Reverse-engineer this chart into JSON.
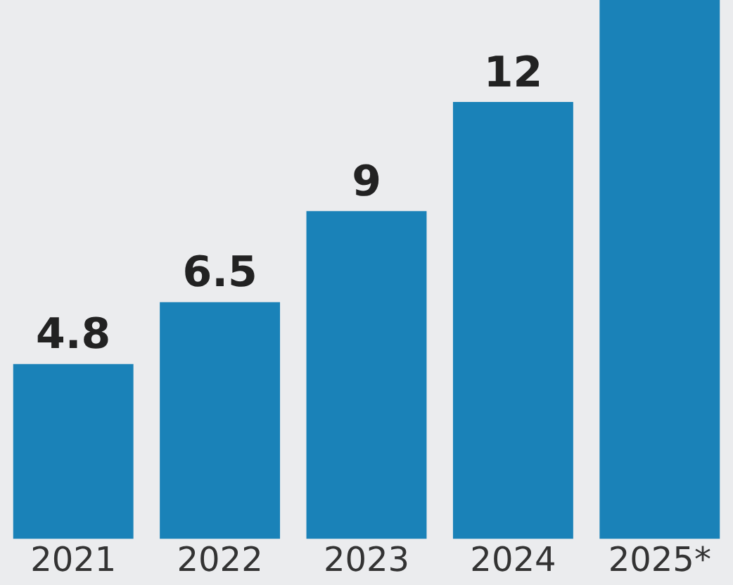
{
  "chart_data": {
    "type": "bar",
    "categories": [
      "2021",
      "2022",
      "2023",
      "2024",
      "2025*"
    ],
    "values": [
      4.8,
      6.5,
      9,
      12,
      14.8
    ],
    "value_labels": [
      "4.8",
      "6.5",
      "9",
      "12",
      null
    ],
    "color": "#1a82b8",
    "ylim": [
      0,
      14.8
    ],
    "grid": false,
    "legend": false
  }
}
